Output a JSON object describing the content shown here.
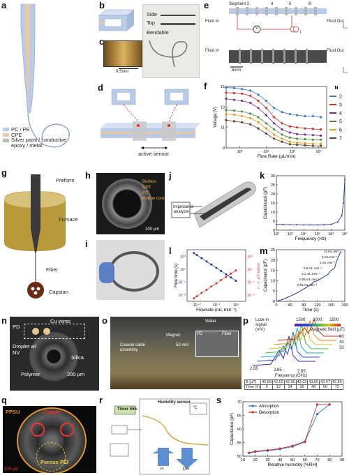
{
  "panels": {
    "a": {
      "label": "a",
      "legend": [
        "PC / PE",
        "CPE",
        "Silver paint / conductive epoxy / metal"
      ],
      "colors": {
        "pc": "#b9cbe6",
        "cpe": "#e9c8a3",
        "silver": "#b8b8b8"
      }
    },
    "b": {
      "label": "b"
    },
    "c": {
      "label": "c",
      "scalebar": "0.5mm"
    },
    "side_top": {
      "side": "Side",
      "top": "Top",
      "bendable": "Bendable"
    },
    "d": {
      "label": "d",
      "active": "active sensor"
    },
    "e": {
      "label": "e",
      "segment": "Segment 2",
      "segnums": [
        "4",
        "6",
        "8"
      ],
      "fluid_in": "Fluid In",
      "fluid_out": "Fluid Out",
      "v": "V",
      "i": "I",
      "scale": "5mm"
    },
    "f": {
      "label": "f"
    },
    "g": {
      "label": "g",
      "preform": "Preform",
      "furnace": "Furnace",
      "fiber": "Fiber",
      "capstan": "Capstan"
    },
    "h": {
      "label": "h",
      "scale": "100 µm",
      "legend": [
        "Biofiers",
        "CPE",
        "PC",
        "Hollow core"
      ]
    },
    "i": {
      "label": "i"
    },
    "j": {
      "label": "j",
      "analyzer": "Impedance analyzer"
    },
    "k": {
      "label": "k"
    },
    "l": {
      "label": "l"
    },
    "m": {
      "label": "m"
    },
    "n": {
      "label": "n",
      "pd": "PD",
      "wires": "Cu wires",
      "droplet": "Droplet w/ NV",
      "silica": "Silica",
      "polymer": "Polymer",
      "scale": "200 µm"
    },
    "o": {
      "label": "o",
      "water": "Water",
      "coax": "Coaxial cable assembly",
      "magnet": "Magnet",
      "scale": "50 mm",
      "pd": "PD",
      "fiber": "Fiber"
    },
    "p": {
      "label": "p",
      "signal": "Lock-in signal (mV)",
      "colorbar": [
        "1500",
        "2000",
        "2500"
      ],
      "mag": "Magnetic field (µT)",
      "freq": "Frequency (GHz)",
      "ticks_freq": [
        "2.85",
        "2.85",
        "2.85"
      ],
      "ylabels": [
        "20",
        "40",
        "60"
      ],
      "table": {
        "b_label": "B (µT)",
        "b": [
          "42.89",
          "42.02",
          "42.56",
          "43.03",
          "43.05",
          "43.07",
          "42.56"
        ],
        "t_label": "Time (h)",
        "t": [
          "0",
          "12",
          "24",
          "36",
          "48",
          "60",
          "72"
        ]
      }
    },
    "q": {
      "label": "q",
      "ppsu": "PPSU",
      "copper": "Copper",
      "pei": "Porous PEI",
      "scale": "100 µm"
    },
    "r": {
      "label": "r",
      "sensor": "Humidity sensor",
      "timer": "Timer 555",
      "h": "H",
      "dh": "DH",
      "reading": "°C"
    },
    "s": {
      "label": "s"
    }
  },
  "chart_data": [
    {
      "id": "f",
      "type": "scatter",
      "xlabel": "Flow Rate (µL/min)",
      "ylabel": "Voltage (V)",
      "xscale": "log",
      "xlim": [
        3,
        20000
      ],
      "ylim": [
        9,
        15
      ],
      "xticks": [
        10,
        100,
        1000,
        10000
      ],
      "yticks": [
        9,
        11,
        13,
        15
      ],
      "legend_title": "N",
      "x": [
        3,
        6,
        12,
        25,
        50,
        100,
        200,
        400,
        800,
        1500,
        3000,
        6000,
        12000
      ],
      "series": [
        {
          "name": "2",
          "color": "#3a79c4",
          "values": [
            14.9,
            14.85,
            14.75,
            14.6,
            14.2,
            13.6,
            12.9,
            12.5,
            12.3,
            12.2,
            12.1,
            12.1,
            12.0
          ]
        },
        {
          "name": "3",
          "color": "#c5352c",
          "values": [
            14.4,
            14.35,
            14.3,
            14.1,
            13.6,
            12.9,
            12.0,
            11.4,
            11.1,
            11.0,
            10.9,
            10.85,
            10.8
          ]
        },
        {
          "name": "4",
          "color": "#7a2f86",
          "values": [
            13.8,
            13.7,
            13.6,
            13.4,
            12.9,
            12.2,
            11.4,
            10.8,
            10.5,
            10.35,
            10.3,
            10.25,
            10.2
          ]
        },
        {
          "name": "5",
          "color": "#4a8e3b",
          "values": [
            12.7,
            12.65,
            12.55,
            12.35,
            12.0,
            11.4,
            10.8,
            10.3,
            10.0,
            9.9,
            9.85,
            9.8,
            9.8
          ]
        },
        {
          "name": "6",
          "color": "#d6a21c",
          "values": [
            12.3,
            12.25,
            12.1,
            11.9,
            11.5,
            10.9,
            10.3,
            9.9,
            9.6,
            9.5,
            9.45,
            9.4,
            9.4
          ]
        },
        {
          "name": "7",
          "color": "#6a3b26",
          "values": [
            11.7,
            11.6,
            11.5,
            11.3,
            10.9,
            10.4,
            9.9,
            9.6,
            9.35,
            9.3,
            9.25,
            9.2,
            9.2
          ]
        }
      ]
    },
    {
      "id": "k",
      "type": "line",
      "xlabel": "Frequency (Hz)",
      "ylabel": "Capacitance (pF)",
      "xscale": "log",
      "xlim": [
        100,
        10000000
      ],
      "ylim": [
        0,
        30
      ],
      "xticks": [
        100,
        1000,
        10000,
        100000,
        1000000,
        10000000
      ],
      "yticks": [
        0,
        5,
        10,
        15,
        20,
        25,
        30
      ],
      "series": [
        {
          "name": "",
          "color": "#1f3b99",
          "x": [
            100,
            300,
            1000,
            3000,
            10000,
            30000,
            100000,
            300000,
            1000000,
            3000000,
            6000000,
            8000000,
            10000000
          ],
          "values": [
            3.2,
            3.1,
            3.0,
            3.0,
            2.9,
            2.9,
            2.9,
            3.0,
            3.2,
            4.5,
            8.0,
            15.0,
            28.0
          ]
        }
      ]
    },
    {
      "id": "l",
      "type": "scatter",
      "xlabel": "Flowrate (mL min⁻¹)",
      "ylabel": "Flow time (s)",
      "ylabel2": "Slope (pF s⁻¹)",
      "xscale": "log",
      "yscale": "log",
      "xlim": [
        0.0001,
        100
      ],
      "ylim": [
        0.0001,
        10000
      ],
      "series": [
        {
          "name": "",
          "color": "#1f3b99",
          "x": [
            0.0005,
            0.001,
            0.003,
            0.01,
            0.03,
            0.1,
            0.3,
            1,
            3,
            10
          ],
          "values": [
            3000,
            1500,
            500,
            150,
            50,
            15,
            5,
            1.5,
            0.5,
            0.15
          ]
        },
        {
          "name": "",
          "color": "#d23a2c",
          "x": [
            0.0005,
            0.001,
            0.003,
            0.01,
            0.03,
            0.1,
            0.3,
            1,
            3,
            10
          ],
          "values": [
            0.0003,
            0.0006,
            0.002,
            0.006,
            0.02,
            0.06,
            0.2,
            0.6,
            2,
            6
          ]
        }
      ]
    },
    {
      "id": "m",
      "type": "line",
      "xlabel": "Time (s)",
      "ylabel": "Capacitance (pF)",
      "xlim": [
        0,
        200
      ],
      "ylim": [
        0,
        25
      ],
      "xticks": [
        0,
        40,
        80,
        120,
        160,
        200
      ],
      "yticks": [
        0,
        5,
        10,
        15,
        20,
        25
      ],
      "annotations": [
        "10 mL min⁻¹",
        "5 mL min⁻¹",
        "1 mL min⁻¹",
        "0.5 mL min⁻¹",
        "0.1 mL min⁻¹",
        "0.05 mL min⁻¹",
        "0.01 mL min⁻¹"
      ],
      "series": [
        {
          "name": "",
          "color": "#1f3b99",
          "x": [
            0,
            20,
            40,
            60,
            70,
            90,
            100,
            110,
            120,
            130,
            140,
            150,
            160,
            170,
            175,
            180,
            185,
            190
          ],
          "values": [
            0,
            1,
            2.5,
            4,
            5,
            7,
            8,
            9.5,
            10,
            11,
            12,
            13,
            15,
            16,
            19,
            21,
            23,
            24
          ]
        }
      ]
    },
    {
      "id": "s",
      "type": "line",
      "xlabel": "Relative humidity (%RH)",
      "ylabel": "Capacitance (pF)",
      "xlim": [
        10,
        90
      ],
      "ylim": [
        50,
        70
      ],
      "xticks": [
        10,
        20,
        30,
        40,
        50,
        60,
        70,
        80,
        90
      ],
      "yticks": [
        50,
        55,
        60,
        65,
        70
      ],
      "series": [
        {
          "name": "Absorption",
          "color": "#2c6fcb",
          "x": [
            15,
            20,
            30,
            40,
            50,
            60,
            70,
            80
          ],
          "values": [
            51.2,
            51.6,
            52.0,
            52.6,
            53.5,
            55.2,
            65.5,
            69
          ]
        },
        {
          "name": "Desorption",
          "color": "#c62f2f",
          "x": [
            15,
            20,
            30,
            40,
            50,
            60,
            70,
            80
          ],
          "values": [
            51.3,
            51.8,
            52.2,
            52.8,
            53.8,
            55.4,
            69.0,
            69
          ]
        }
      ]
    }
  ]
}
